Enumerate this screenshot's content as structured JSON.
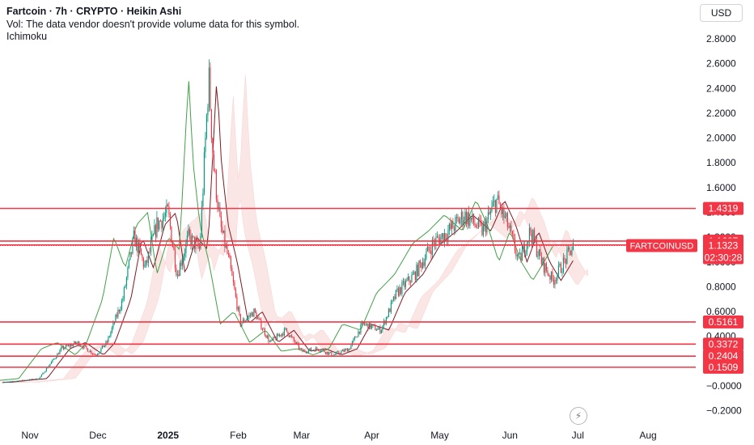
{
  "header": {
    "title": "Fartcoin · 7h · CRYPTO · Heikin Ashi",
    "volume_note": "Vol: The data vendor doesn't provide volume data for this symbol.",
    "indicator": "Ichimoku"
  },
  "currency_button": "USD",
  "flash_icon": "lightning-icon",
  "colors": {
    "up": "#089981",
    "down": "#f23645",
    "line": "#f23645",
    "axis_text": "#131722"
  },
  "chart_data": {
    "type": "line",
    "style": "heikin-ashi candles with Ichimoku overlay",
    "ylim": [
      -0.3,
      2.9
    ],
    "y_ticks": [
      "2.8000",
      "2.6000",
      "2.4000",
      "2.2000",
      "2.0000",
      "1.8000",
      "1.6000",
      "1.4000",
      "1.2000",
      "1.0000",
      "0.8000",
      "0.6000",
      "0.4000",
      "0.2000",
      "−0.0000",
      "−0.2000"
    ],
    "x_ticks": [
      "Nov",
      "Dec",
      "2025",
      "Feb",
      "Mar",
      "Apr",
      "May",
      "Jun",
      "Jul",
      "Aug"
    ],
    "horizontal_levels": [
      "1.4319",
      "1.1687",
      "1.1371",
      "0.5161",
      "0.3372",
      "0.2404",
      "0.1509"
    ],
    "current_price": {
      "symbol": "FARTCOINUSD",
      "value": "1.1323",
      "countdown": "02:30:28"
    },
    "price_series": [
      {
        "d": "2024-10-20",
        "v": 0.03
      },
      {
        "d": "2024-11-05",
        "v": 0.06
      },
      {
        "d": "2024-11-15",
        "v": 0.3
      },
      {
        "d": "2024-11-22",
        "v": 0.35
      },
      {
        "d": "2024-11-30",
        "v": 0.25
      },
      {
        "d": "2024-12-05",
        "v": 0.35
      },
      {
        "d": "2024-12-12",
        "v": 0.7
      },
      {
        "d": "2024-12-17",
        "v": 1.2
      },
      {
        "d": "2024-12-22",
        "v": 0.95
      },
      {
        "d": "2024-12-27",
        "v": 1.3
      },
      {
        "d": "2025-01-01",
        "v": 1.4
      },
      {
        "d": "2025-01-05",
        "v": 0.9
      },
      {
        "d": "2025-01-10",
        "v": 1.2
      },
      {
        "d": "2025-01-15",
        "v": 1.1
      },
      {
        "d": "2025-01-19",
        "v": 2.5
      },
      {
        "d": "2025-01-21",
        "v": 1.8
      },
      {
        "d": "2025-01-24",
        "v": 1.3
      },
      {
        "d": "2025-01-28",
        "v": 1.0
      },
      {
        "d": "2025-02-02",
        "v": 0.5
      },
      {
        "d": "2025-02-08",
        "v": 0.6
      },
      {
        "d": "2025-02-15",
        "v": 0.35
      },
      {
        "d": "2025-02-22",
        "v": 0.45
      },
      {
        "d": "2025-03-01",
        "v": 0.28
      },
      {
        "d": "2025-03-08",
        "v": 0.3
      },
      {
        "d": "2025-03-15",
        "v": 0.25
      },
      {
        "d": "2025-03-22",
        "v": 0.3
      },
      {
        "d": "2025-03-28",
        "v": 0.5
      },
      {
        "d": "2025-04-05",
        "v": 0.45
      },
      {
        "d": "2025-04-12",
        "v": 0.75
      },
      {
        "d": "2025-04-20",
        "v": 0.9
      },
      {
        "d": "2025-04-28",
        "v": 1.15
      },
      {
        "d": "2025-05-05",
        "v": 1.25
      },
      {
        "d": "2025-05-12",
        "v": 1.38
      },
      {
        "d": "2025-05-20",
        "v": 1.25
      },
      {
        "d": "2025-05-26",
        "v": 1.5
      },
      {
        "d": "2025-05-31",
        "v": 1.3
      },
      {
        "d": "2025-06-05",
        "v": 1.0
      },
      {
        "d": "2025-06-10",
        "v": 1.25
      },
      {
        "d": "2025-06-15",
        "v": 1.0
      },
      {
        "d": "2025-06-20",
        "v": 0.85
      },
      {
        "d": "2025-06-25",
        "v": 1.0
      },
      {
        "d": "2025-06-29",
        "v": 1.13
      }
    ]
  }
}
